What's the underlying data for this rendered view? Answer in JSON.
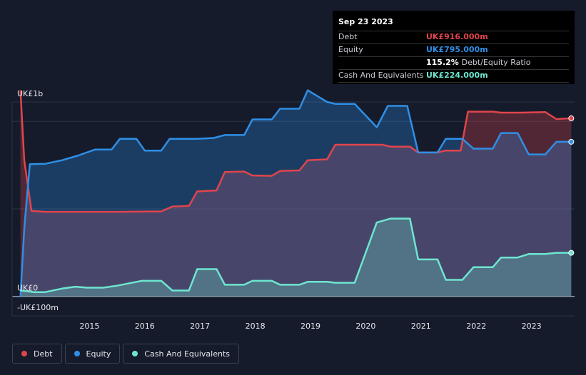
{
  "tooltip": {
    "date": "Sep 23 2023",
    "rows": [
      {
        "label": "Debt",
        "value": "UK£916.000m",
        "color": "#e0454c"
      },
      {
        "label": "Equity",
        "value": "UK£795.000m",
        "color": "#2f8fe6"
      },
      {
        "label": "",
        "value": "115.2%",
        "suffix": "Debt/Equity Ratio",
        "color": "#ffffff"
      },
      {
        "label": "Cash And Equivalents",
        "value": "UK£224.000m",
        "color": "#6ee6cf"
      }
    ]
  },
  "legend": [
    {
      "label": "Debt",
      "color": "#e0454c"
    },
    {
      "label": "Equity",
      "color": "#2f8fe6"
    },
    {
      "label": "Cash And Equivalents",
      "color": "#6ee6cf"
    }
  ],
  "chart_data": {
    "type": "area",
    "ylim": [
      -100,
      1000
    ],
    "y_tick_labels": [
      {
        "value": 1000,
        "label": "UK£1b"
      },
      {
        "value": 0,
        "label": "UK£0"
      },
      {
        "value": -100,
        "label": "-UK£100m"
      }
    ],
    "x_range": [
      2013.6,
      2023.78
    ],
    "x_ticks": [
      "2015",
      "2016",
      "2017",
      "2018",
      "2019",
      "2020",
      "2021",
      "2022",
      "2023"
    ],
    "grid": true,
    "series": [
      {
        "name": "Debt",
        "color": "#e0454c",
        "points": [
          [
            2013.75,
            1060
          ],
          [
            2013.82,
            700
          ],
          [
            2013.95,
            440
          ],
          [
            2014.2,
            435
          ],
          [
            2015,
            435
          ],
          [
            2015.5,
            435
          ],
          [
            2016.3,
            437
          ],
          [
            2016.5,
            462
          ],
          [
            2016.8,
            465
          ],
          [
            2016.95,
            540
          ],
          [
            2017.3,
            545
          ],
          [
            2017.45,
            640
          ],
          [
            2017.8,
            642
          ],
          [
            2017.95,
            622
          ],
          [
            2018.3,
            620
          ],
          [
            2018.45,
            645
          ],
          [
            2018.8,
            648
          ],
          [
            2018.95,
            700
          ],
          [
            2019.3,
            705
          ],
          [
            2019.45,
            780
          ],
          [
            2020.3,
            780
          ],
          [
            2020.45,
            770
          ],
          [
            2020.8,
            770
          ],
          [
            2020.95,
            740
          ],
          [
            2021.3,
            740
          ],
          [
            2021.45,
            750
          ],
          [
            2021.72,
            750
          ],
          [
            2021.85,
            950
          ],
          [
            2022.3,
            950
          ],
          [
            2022.45,
            945
          ],
          [
            2022.8,
            945
          ],
          [
            2023.25,
            948
          ],
          [
            2023.45,
            912
          ],
          [
            2023.72,
            916
          ]
        ]
      },
      {
        "name": "Equity",
        "color": "#2f8fe6",
        "points": [
          [
            2013.75,
            -5
          ],
          [
            2013.82,
            350
          ],
          [
            2013.92,
            680
          ],
          [
            2014.2,
            682
          ],
          [
            2014.5,
            700
          ],
          [
            2014.8,
            725
          ],
          [
            2015.1,
            755
          ],
          [
            2015.4,
            755
          ],
          [
            2015.55,
            810
          ],
          [
            2015.85,
            810
          ],
          [
            2016,
            750
          ],
          [
            2016.3,
            750
          ],
          [
            2016.45,
            810
          ],
          [
            2016.8,
            810
          ],
          [
            2016.95,
            810
          ],
          [
            2017.25,
            815
          ],
          [
            2017.45,
            830
          ],
          [
            2017.8,
            830
          ],
          [
            2017.95,
            910
          ],
          [
            2018.3,
            910
          ],
          [
            2018.45,
            965
          ],
          [
            2018.8,
            965
          ],
          [
            2018.95,
            1060
          ],
          [
            2019.3,
            1000
          ],
          [
            2019.45,
            990
          ],
          [
            2019.8,
            990
          ],
          [
            2020.2,
            870
          ],
          [
            2020.4,
            980
          ],
          [
            2020.75,
            980
          ],
          [
            2020.95,
            740
          ],
          [
            2021.3,
            740
          ],
          [
            2021.45,
            810
          ],
          [
            2021.75,
            810
          ],
          [
            2021.95,
            760
          ],
          [
            2022.3,
            760
          ],
          [
            2022.45,
            840
          ],
          [
            2022.75,
            840
          ],
          [
            2022.95,
            730
          ],
          [
            2023.25,
            730
          ],
          [
            2023.45,
            795
          ],
          [
            2023.72,
            795
          ]
        ]
      },
      {
        "name": "Cash And Equivalents",
        "color": "#6ee6cf",
        "points": [
          [
            2013.75,
            30
          ],
          [
            2014,
            22
          ],
          [
            2014.2,
            22
          ],
          [
            2014.5,
            40
          ],
          [
            2014.75,
            50
          ],
          [
            2014.95,
            45
          ],
          [
            2015.25,
            45
          ],
          [
            2015.5,
            55
          ],
          [
            2015.95,
            80
          ],
          [
            2016.3,
            80
          ],
          [
            2016.5,
            30
          ],
          [
            2016.8,
            30
          ],
          [
            2016.95,
            140
          ],
          [
            2017.3,
            140
          ],
          [
            2017.45,
            60
          ],
          [
            2017.8,
            60
          ],
          [
            2017.95,
            80
          ],
          [
            2018.3,
            80
          ],
          [
            2018.45,
            60
          ],
          [
            2018.8,
            60
          ],
          [
            2018.95,
            75
          ],
          [
            2019.3,
            75
          ],
          [
            2019.45,
            70
          ],
          [
            2019.8,
            70
          ],
          [
            2020.2,
            380
          ],
          [
            2020.45,
            400
          ],
          [
            2020.8,
            400
          ],
          [
            2020.95,
            190
          ],
          [
            2021.3,
            190
          ],
          [
            2021.45,
            85
          ],
          [
            2021.75,
            85
          ],
          [
            2021.95,
            150
          ],
          [
            2022.3,
            150
          ],
          [
            2022.45,
            200
          ],
          [
            2022.75,
            200
          ],
          [
            2022.95,
            218
          ],
          [
            2023.25,
            218
          ],
          [
            2023.45,
            224
          ],
          [
            2023.72,
            224
          ]
        ]
      }
    ]
  }
}
